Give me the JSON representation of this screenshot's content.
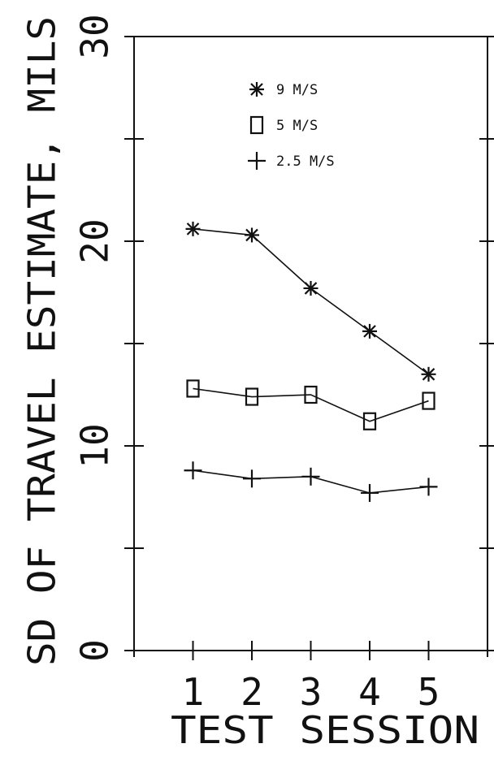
{
  "chart_data": {
    "type": "line",
    "xlabel": "TEST SESSION",
    "ylabel": "SD OF TRAVEL ESTIMATE, MILS",
    "x": [
      1,
      2,
      3,
      4,
      5
    ],
    "x_tick_labels": [
      "1",
      "2",
      "3",
      "4",
      "5"
    ],
    "xlim": [
      0,
      6
    ],
    "ylim": [
      0,
      30
    ],
    "y_major_ticks": [
      0,
      10,
      20,
      30
    ],
    "y_tick_labels": [
      "0",
      "10",
      "20",
      "30"
    ],
    "y_minor_ticks": [
      5,
      15,
      25
    ],
    "grid": false,
    "legend_position": "top-center",
    "series": [
      {
        "name": "9 M/S",
        "marker": "asterisk",
        "values": [
          20.6,
          20.3,
          17.7,
          15.6,
          13.5
        ]
      },
      {
        "name": "5 M/S",
        "marker": "square",
        "values": [
          12.8,
          12.4,
          12.5,
          11.2,
          12.2
        ]
      },
      {
        "name": "2.5 M/S",
        "marker": "plus",
        "values": [
          8.8,
          8.4,
          8.5,
          7.7,
          8.0
        ]
      }
    ],
    "colors": {
      "ink": "#111111"
    }
  }
}
